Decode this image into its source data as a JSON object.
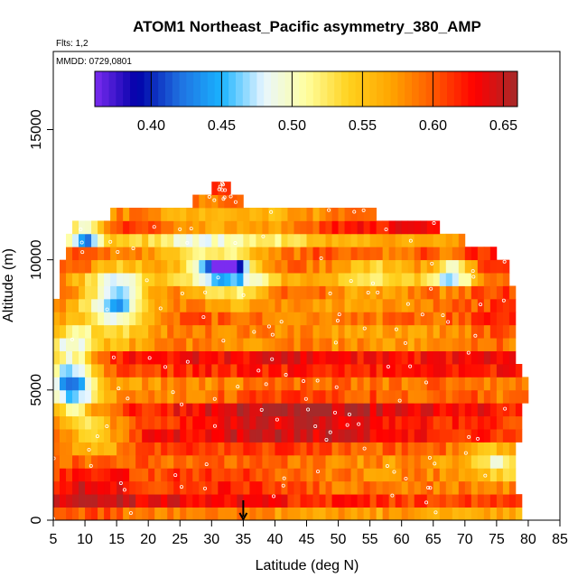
{
  "chart_data": {
    "type": "heatmap",
    "title": "ATOM1 Northeast_Pacific asymmetry_380_AMP",
    "annotations": [
      "Flts: 1,2",
      "MMDD: 0729,0801"
    ],
    "xlabel": "Latitude (deg N)",
    "ylabel": "Altitude (m)",
    "xlim": [
      5,
      85
    ],
    "ylim": [
      0,
      18000
    ],
    "x_ticks": [
      "5",
      "10",
      "15",
      "20",
      "25",
      "30",
      "35",
      "40",
      "45",
      "50",
      "55",
      "60",
      "65",
      "70",
      "75",
      "80",
      "85"
    ],
    "y_ticks": [
      "0",
      "5000",
      "10000",
      "15000"
    ],
    "colorbar": {
      "range": [
        0.36,
        0.66
      ],
      "tick_labels": [
        "0.40",
        "0.45",
        "0.50",
        "0.55",
        "0.60",
        "0.65"
      ],
      "placement": "top-inside",
      "colors": [
        "#7b2cf0",
        "#0000a8",
        "#1f6fe0",
        "#1ab3ff",
        "#e8f6ff",
        "#ffffa0",
        "#ffd21e",
        "#ffa500",
        "#ff5a00",
        "#ff0000",
        "#a52a2a"
      ]
    },
    "marker": {
      "x": 35,
      "y": 0,
      "label": "arrow"
    },
    "grid_cell": {
      "dx": 1,
      "dy": 500
    },
    "coverage": [
      {
        "altitude": 250,
        "lat_min": 5,
        "lat_max": 79
      },
      {
        "altitude": 750,
        "lat_min": 5,
        "lat_max": 79
      },
      {
        "altitude": 1250,
        "lat_min": 5,
        "lat_max": 78
      },
      {
        "altitude": 1750,
        "lat_min": 5,
        "lat_max": 78
      },
      {
        "altitude": 2250,
        "lat_min": 5,
        "lat_max": 78
      },
      {
        "altitude": 2750,
        "lat_min": 5,
        "lat_max": 78
      },
      {
        "altitude": 3250,
        "lat_min": 5,
        "lat_max": 79
      },
      {
        "altitude": 3750,
        "lat_min": 5,
        "lat_max": 79
      },
      {
        "altitude": 4250,
        "lat_min": 5,
        "lat_max": 79
      },
      {
        "altitude": 4750,
        "lat_min": 5,
        "lat_max": 80
      },
      {
        "altitude": 5250,
        "lat_min": 5,
        "lat_max": 80
      },
      {
        "altitude": 5750,
        "lat_min": 5,
        "lat_max": 79
      },
      {
        "altitude": 6250,
        "lat_min": 5,
        "lat_max": 78
      },
      {
        "altitude": 6750,
        "lat_min": 5,
        "lat_max": 78
      },
      {
        "altitude": 7250,
        "lat_min": 5,
        "lat_max": 78
      },
      {
        "altitude": 7750,
        "lat_min": 5,
        "lat_max": 78
      },
      {
        "altitude": 8250,
        "lat_min": 5,
        "lat_max": 78
      },
      {
        "altitude": 8750,
        "lat_min": 6,
        "lat_max": 78
      },
      {
        "altitude": 9250,
        "lat_min": 6,
        "lat_max": 77
      },
      {
        "altitude": 9750,
        "lat_min": 6,
        "lat_max": 77
      },
      {
        "altitude": 10250,
        "lat_min": 7,
        "lat_max": 75
      },
      {
        "altitude": 10750,
        "lat_min": 7,
        "lat_max": 70
      },
      {
        "altitude": 11250,
        "lat_min": 8,
        "lat_max": 66
      },
      {
        "altitude": 11750,
        "lat_min": 14,
        "lat_max": 56
      },
      {
        "altitude": 12250,
        "lat_min": 27,
        "lat_max": 35
      },
      {
        "altitude": 12750,
        "lat_min": 30,
        "lat_max": 33
      }
    ],
    "blobs": [
      {
        "lat": 10,
        "alt": 1500,
        "sx": 8,
        "sy": 1800,
        "value": 0.65
      },
      {
        "lat": 30,
        "alt": 1500,
        "sx": 14,
        "sy": 1500,
        "value": 0.63
      },
      {
        "lat": 45,
        "alt": 4200,
        "sx": 18,
        "sy": 1400,
        "value": 0.64
      },
      {
        "lat": 70,
        "alt": 5000,
        "sx": 9,
        "sy": 900,
        "value": 0.62
      },
      {
        "lat": 75,
        "alt": 2200,
        "sx": 4,
        "sy": 700,
        "value": 0.53
      },
      {
        "lat": 8,
        "alt": 5500,
        "sx": 4,
        "sy": 1800,
        "value": 0.45
      },
      {
        "lat": 12,
        "alt": 3200,
        "sx": 5,
        "sy": 800,
        "value": 0.52
      },
      {
        "lat": 15,
        "alt": 8500,
        "sx": 5,
        "sy": 1200,
        "value": 0.45
      },
      {
        "lat": 27,
        "alt": 10500,
        "sx": 9,
        "sy": 1200,
        "value": 0.52
      },
      {
        "lat": 40,
        "alt": 11000,
        "sx": 8,
        "sy": 900,
        "value": 0.55
      },
      {
        "lat": 33,
        "alt": 9200,
        "sx": 6,
        "sy": 800,
        "value": 0.49
      },
      {
        "lat": 32,
        "alt": 9800,
        "sx": 3,
        "sy": 300,
        "value": 0.38
      },
      {
        "lat": 45,
        "alt": 8000,
        "sx": 10,
        "sy": 700,
        "value": 0.58
      },
      {
        "lat": 56,
        "alt": 9500,
        "sx": 8,
        "sy": 900,
        "value": 0.53
      },
      {
        "lat": 68,
        "alt": 9500,
        "sx": 3,
        "sy": 600,
        "value": 0.47
      },
      {
        "lat": 75,
        "alt": 7500,
        "sx": 4,
        "sy": 1200,
        "value": 0.62
      },
      {
        "lat": 10,
        "alt": 11000,
        "sx": 3,
        "sy": 500,
        "value": 0.42
      },
      {
        "lat": 60,
        "alt": 7000,
        "sx": 10,
        "sy": 1000,
        "value": 0.59
      }
    ],
    "base_value": 0.6
  }
}
